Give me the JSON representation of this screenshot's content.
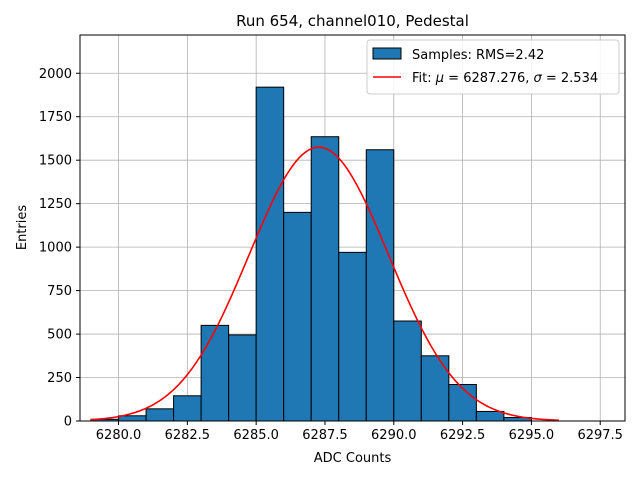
{
  "chart_data": {
    "type": "bar",
    "title": "Run 654, channel010, Pedestal",
    "xlabel": "ADC Counts",
    "ylabel": "Entries",
    "xlim": [
      6278.6,
      6298.4
    ],
    "ylim": [
      0,
      2220
    ],
    "x_ticks": [
      6280.0,
      6282.5,
      6285.0,
      6287.5,
      6290.0,
      6292.5,
      6295.0,
      6297.5
    ],
    "x_tick_labels": [
      "6280.0",
      "6282.5",
      "6285.0",
      "6287.5",
      "6290.0",
      "6292.5",
      "6295.0",
      "6297.5"
    ],
    "y_ticks": [
      0,
      250,
      500,
      750,
      1000,
      1250,
      1500,
      1750,
      2000
    ],
    "y_tick_labels": [
      "0",
      "250",
      "500",
      "750",
      "1000",
      "1250",
      "1500",
      "1750",
      "2000"
    ],
    "grid": true,
    "legend_position": "upper right",
    "histogram": {
      "name": "Samples: RMS=2.42",
      "color": "#1f77b4",
      "edgecolor": "#000000",
      "bin_edges": [
        6279.0,
        6280.0,
        6281.0,
        6282.0,
        6283.0,
        6284.0,
        6285.0,
        6286.0,
        6287.0,
        6288.0,
        6289.0,
        6290.0,
        6291.0,
        6292.0,
        6293.0,
        6294.0,
        6295.0,
        6296.0,
        6297.0,
        6298.0
      ],
      "counts": [
        10,
        30,
        70,
        145,
        550,
        495,
        1920,
        1200,
        1635,
        970,
        1560,
        575,
        375,
        210,
        55,
        20,
        0,
        0,
        0
      ]
    },
    "fit": {
      "name_prefix": "Fit: ",
      "mu_symbol": "μ",
      "mu_value": " = 6287.276, ",
      "sigma_symbol": "σ",
      "sigma_value": " = 2.534",
      "mu": 6287.276,
      "sigma": 2.534,
      "amplitude": 1575,
      "x_range": [
        6279.0,
        6296.0
      ],
      "color": "#ff0000"
    }
  }
}
